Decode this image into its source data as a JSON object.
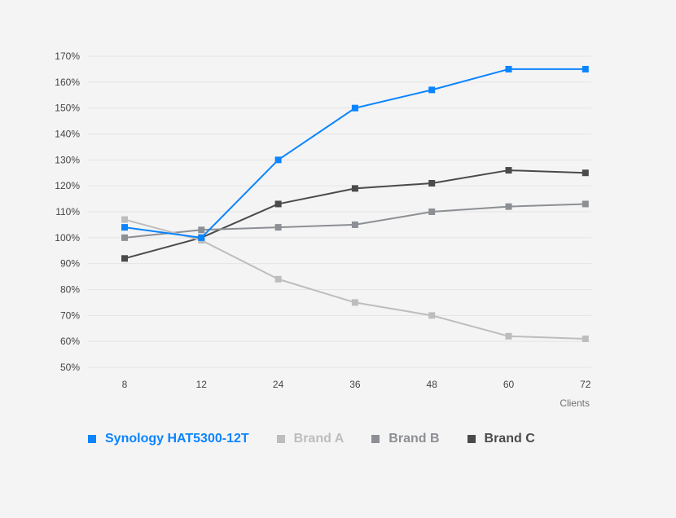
{
  "chart_data": {
    "type": "line",
    "title": "",
    "xlabel": "Clients",
    "ylabel": "",
    "categories": [
      "8",
      "12",
      "24",
      "36",
      "48",
      "60",
      "72"
    ],
    "y_ticks": [
      "50%",
      "60%",
      "70%",
      "80%",
      "90%",
      "100%",
      "110%",
      "120%",
      "130%",
      "140%",
      "150%",
      "160%",
      "170%"
    ],
    "ylim": [
      50,
      170
    ],
    "grid": true,
    "legend_position": "bottom",
    "series": [
      {
        "name": "Synology HAT5300-12T",
        "color": "#0a84ff",
        "values": [
          104,
          100,
          130,
          150,
          157,
          165,
          165
        ]
      },
      {
        "name": "Brand A",
        "color": "#bdbdbd",
        "values": [
          107,
          99,
          84,
          75,
          70,
          62,
          61
        ]
      },
      {
        "name": "Brand B",
        "color": "#8c8f93",
        "values": [
          100,
          103,
          104,
          105,
          110,
          112,
          113
        ]
      },
      {
        "name": "Brand C",
        "color": "#4a4a4a",
        "values": [
          92,
          100,
          113,
          119,
          121,
          126,
          125
        ]
      }
    ]
  }
}
